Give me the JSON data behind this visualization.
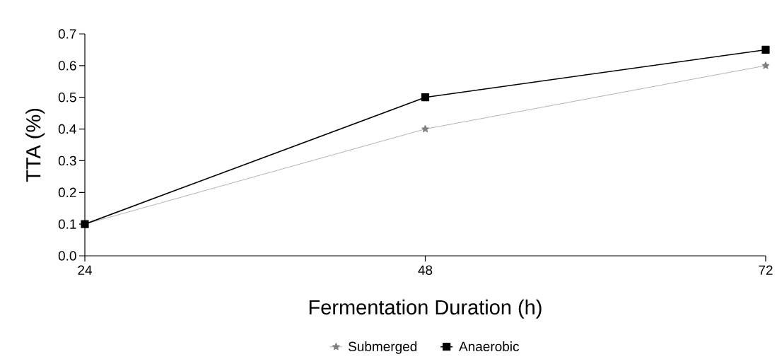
{
  "chart_data": {
    "type": "line",
    "xlabel": "Fermentation Duration   (h)",
    "ylabel": "TTA (%)",
    "x": [
      24,
      48,
      72
    ],
    "xlim": [
      24,
      72
    ],
    "xticks": [
      24,
      48,
      72
    ],
    "ylim": [
      0,
      0.7
    ],
    "yticks": [
      {
        "value": 0,
        "label": "0.0"
      },
      0.1,
      0.2,
      0.3,
      0.4,
      0.5,
      0.6,
      0.7
    ],
    "grid": false,
    "legend": "bottom",
    "line_style": "solid",
    "series": [
      {
        "name": "Submerged",
        "color": "#808080",
        "marker": "star",
        "values": [
          0.1,
          0.4,
          0.6
        ]
      },
      {
        "name": "Anaerobic",
        "color": "#000000",
        "marker": "square",
        "values": [
          0.1,
          0.5,
          0.65
        ]
      }
    ]
  }
}
